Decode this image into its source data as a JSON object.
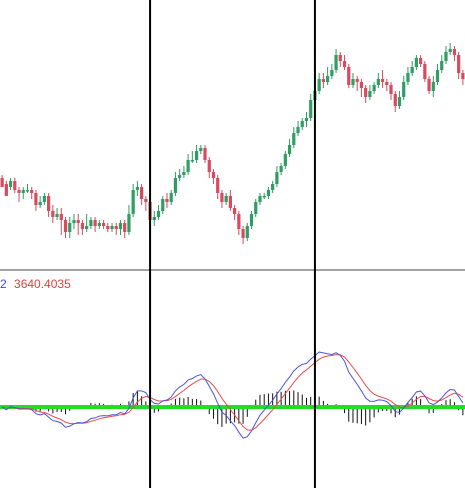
{
  "indicator": {
    "readout_1": "2",
    "readout_2": "3640.4035"
  },
  "colors": {
    "bull": "#2f9e63",
    "bear": "#d94a5e",
    "macd_line": "#4a55d6",
    "signal_line": "#e84b4b",
    "zero_line": "#22dd22",
    "histogram": "#111111",
    "cursor": "#000000",
    "divider": "#444444"
  },
  "chart_data": [
    {
      "type": "candlestick",
      "title": "",
      "ohlc": [
        [
          0.14,
          0.11,
          0.15,
          0.12
        ],
        [
          0.12,
          0.08,
          0.13,
          0.11
        ],
        [
          0.11,
          0.13,
          0.14,
          0.1
        ],
        [
          0.13,
          0.1,
          0.14,
          0.09
        ],
        [
          0.1,
          0.09,
          0.11,
          0.06
        ],
        [
          0.09,
          0.1,
          0.11,
          0.07
        ],
        [
          0.1,
          0.1,
          0.12,
          0.09
        ],
        [
          0.1,
          0.09,
          0.11,
          0.07
        ],
        [
          0.09,
          0.05,
          0.1,
          0.03
        ],
        [
          0.05,
          0.06,
          0.08,
          0.04
        ],
        [
          0.06,
          0.08,
          0.09,
          0.05
        ],
        [
          0.08,
          0.03,
          0.09,
          0.01
        ],
        [
          0.03,
          0.01,
          0.05,
          -0.01
        ],
        [
          0.01,
          0.02,
          0.04,
          0.0
        ],
        [
          0.02,
          0.0,
          0.04,
          -0.05
        ],
        [
          0.0,
          -0.04,
          0.01,
          -0.06
        ],
        [
          -0.04,
          -0.01,
          0.01,
          -0.06
        ],
        [
          -0.01,
          0.0,
          0.02,
          -0.03
        ],
        [
          0.0,
          -0.01,
          0.02,
          -0.05
        ],
        [
          -0.01,
          -0.03,
          0.0,
          -0.05
        ],
        [
          -0.03,
          -0.02,
          0.02,
          -0.04
        ],
        [
          -0.02,
          0.0,
          0.01,
          -0.03
        ],
        [
          0.0,
          -0.02,
          0.01,
          -0.04
        ],
        [
          -0.02,
          -0.01,
          0.0,
          -0.03
        ],
        [
          -0.01,
          -0.02,
          0.0,
          -0.03
        ],
        [
          -0.02,
          -0.03,
          -0.01,
          -0.04
        ],
        [
          -0.03,
          -0.02,
          -0.01,
          -0.04
        ],
        [
          -0.02,
          -0.03,
          -0.01,
          -0.05
        ],
        [
          -0.03,
          -0.01,
          0.0,
          -0.05
        ],
        [
          -0.01,
          -0.04,
          0.0,
          -0.06
        ],
        [
          -0.04,
          0.02,
          0.05,
          -0.05
        ],
        [
          0.02,
          0.1,
          0.12,
          0.01
        ],
        [
          0.1,
          0.11,
          0.13,
          0.08
        ],
        [
          0.11,
          0.07,
          0.12,
          0.05
        ],
        [
          0.07,
          0.06,
          0.08,
          0.03
        ],
        [
          0.06,
          0.0,
          0.07,
          -0.02
        ],
        [
          0.0,
          0.01,
          0.03,
          -0.02
        ],
        [
          0.01,
          0.03,
          0.05,
          0.0
        ],
        [
          0.03,
          0.07,
          0.08,
          0.02
        ],
        [
          0.07,
          0.06,
          0.09,
          0.04
        ],
        [
          0.06,
          0.09,
          0.1,
          0.05
        ],
        [
          0.09,
          0.14,
          0.16,
          0.08
        ],
        [
          0.14,
          0.15,
          0.17,
          0.13
        ],
        [
          0.15,
          0.16,
          0.18,
          0.14
        ],
        [
          0.16,
          0.2,
          0.22,
          0.15
        ],
        [
          0.2,
          0.2,
          0.23,
          0.19
        ],
        [
          0.2,
          0.23,
          0.25,
          0.19
        ],
        [
          0.23,
          0.24,
          0.25,
          0.22
        ],
        [
          0.24,
          0.2,
          0.25,
          0.19
        ],
        [
          0.2,
          0.16,
          0.21,
          0.14
        ],
        [
          0.16,
          0.14,
          0.17,
          0.12
        ],
        [
          0.14,
          0.09,
          0.15,
          0.07
        ],
        [
          0.09,
          0.06,
          0.1,
          0.04
        ],
        [
          0.06,
          0.08,
          0.09,
          0.05
        ],
        [
          0.08,
          0.04,
          0.1,
          0.03
        ],
        [
          0.04,
          0.02,
          0.05,
          0.0
        ],
        [
          0.02,
          -0.03,
          0.03,
          -0.05
        ],
        [
          -0.03,
          -0.06,
          -0.02,
          -0.08
        ],
        [
          -0.06,
          -0.02,
          -0.01,
          -0.07
        ],
        [
          -0.02,
          0.02,
          0.03,
          -0.03
        ],
        [
          0.02,
          0.06,
          0.07,
          0.01
        ],
        [
          0.06,
          0.08,
          0.09,
          0.05
        ],
        [
          0.08,
          0.08,
          0.09,
          0.07
        ],
        [
          0.08,
          0.1,
          0.11,
          0.07
        ],
        [
          0.1,
          0.12,
          0.13,
          0.09
        ],
        [
          0.12,
          0.16,
          0.18,
          0.11
        ],
        [
          0.16,
          0.18,
          0.19,
          0.15
        ],
        [
          0.18,
          0.22,
          0.23,
          0.17
        ],
        [
          0.22,
          0.25,
          0.27,
          0.21
        ],
        [
          0.25,
          0.29,
          0.31,
          0.24
        ],
        [
          0.29,
          0.31,
          0.33,
          0.28
        ],
        [
          0.31,
          0.33,
          0.34,
          0.3
        ],
        [
          0.33,
          0.34,
          0.36,
          0.31
        ],
        [
          0.34,
          0.4,
          0.42,
          0.33
        ],
        [
          0.4,
          0.43,
          0.45,
          0.39
        ],
        [
          0.43,
          0.47,
          0.49,
          0.42
        ],
        [
          0.47,
          0.46,
          0.49,
          0.44
        ],
        [
          0.46,
          0.48,
          0.51,
          0.45
        ],
        [
          0.48,
          0.5,
          0.52,
          0.47
        ],
        [
          0.5,
          0.55,
          0.57,
          0.49
        ],
        [
          0.55,
          0.53,
          0.56,
          0.51
        ],
        [
          0.53,
          0.51,
          0.55,
          0.5
        ],
        [
          0.51,
          0.45,
          0.52,
          0.44
        ],
        [
          0.45,
          0.47,
          0.49,
          0.44
        ],
        [
          0.47,
          0.46,
          0.48,
          0.43
        ],
        [
          0.46,
          0.44,
          0.47,
          0.41
        ],
        [
          0.44,
          0.41,
          0.45,
          0.39
        ],
        [
          0.41,
          0.43,
          0.45,
          0.4
        ],
        [
          0.43,
          0.45,
          0.46,
          0.42
        ],
        [
          0.45,
          0.47,
          0.49,
          0.44
        ],
        [
          0.47,
          0.46,
          0.5,
          0.44
        ],
        [
          0.46,
          0.45,
          0.47,
          0.43
        ],
        [
          0.45,
          0.42,
          0.46,
          0.4
        ],
        [
          0.42,
          0.38,
          0.43,
          0.36
        ],
        [
          0.38,
          0.41,
          0.43,
          0.37
        ],
        [
          0.41,
          0.46,
          0.48,
          0.4
        ],
        [
          0.46,
          0.49,
          0.51,
          0.45
        ],
        [
          0.49,
          0.51,
          0.53,
          0.48
        ],
        [
          0.51,
          0.54,
          0.55,
          0.5
        ],
        [
          0.54,
          0.52,
          0.55,
          0.51
        ],
        [
          0.52,
          0.47,
          0.53,
          0.46
        ],
        [
          0.47,
          0.43,
          0.48,
          0.42
        ],
        [
          0.43,
          0.46,
          0.48,
          0.41
        ],
        [
          0.46,
          0.5,
          0.52,
          0.45
        ],
        [
          0.5,
          0.53,
          0.55,
          0.49
        ],
        [
          0.53,
          0.56,
          0.58,
          0.52
        ],
        [
          0.56,
          0.57,
          0.59,
          0.55
        ],
        [
          0.57,
          0.55,
          0.58,
          0.53
        ],
        [
          0.55,
          0.49,
          0.56,
          0.47
        ],
        [
          0.49,
          0.47,
          0.5,
          0.45
        ]
      ],
      "ylim": [
        -0.1,
        0.64
      ],
      "cursor_index": [
        35,
        74
      ]
    },
    {
      "type": "line",
      "title": "",
      "series": [
        {
          "values": []
        },
        {
          "values": []
        }
      ],
      "histogram": [],
      "ylim": [
        -1.0,
        1.25
      ]
    }
  ]
}
